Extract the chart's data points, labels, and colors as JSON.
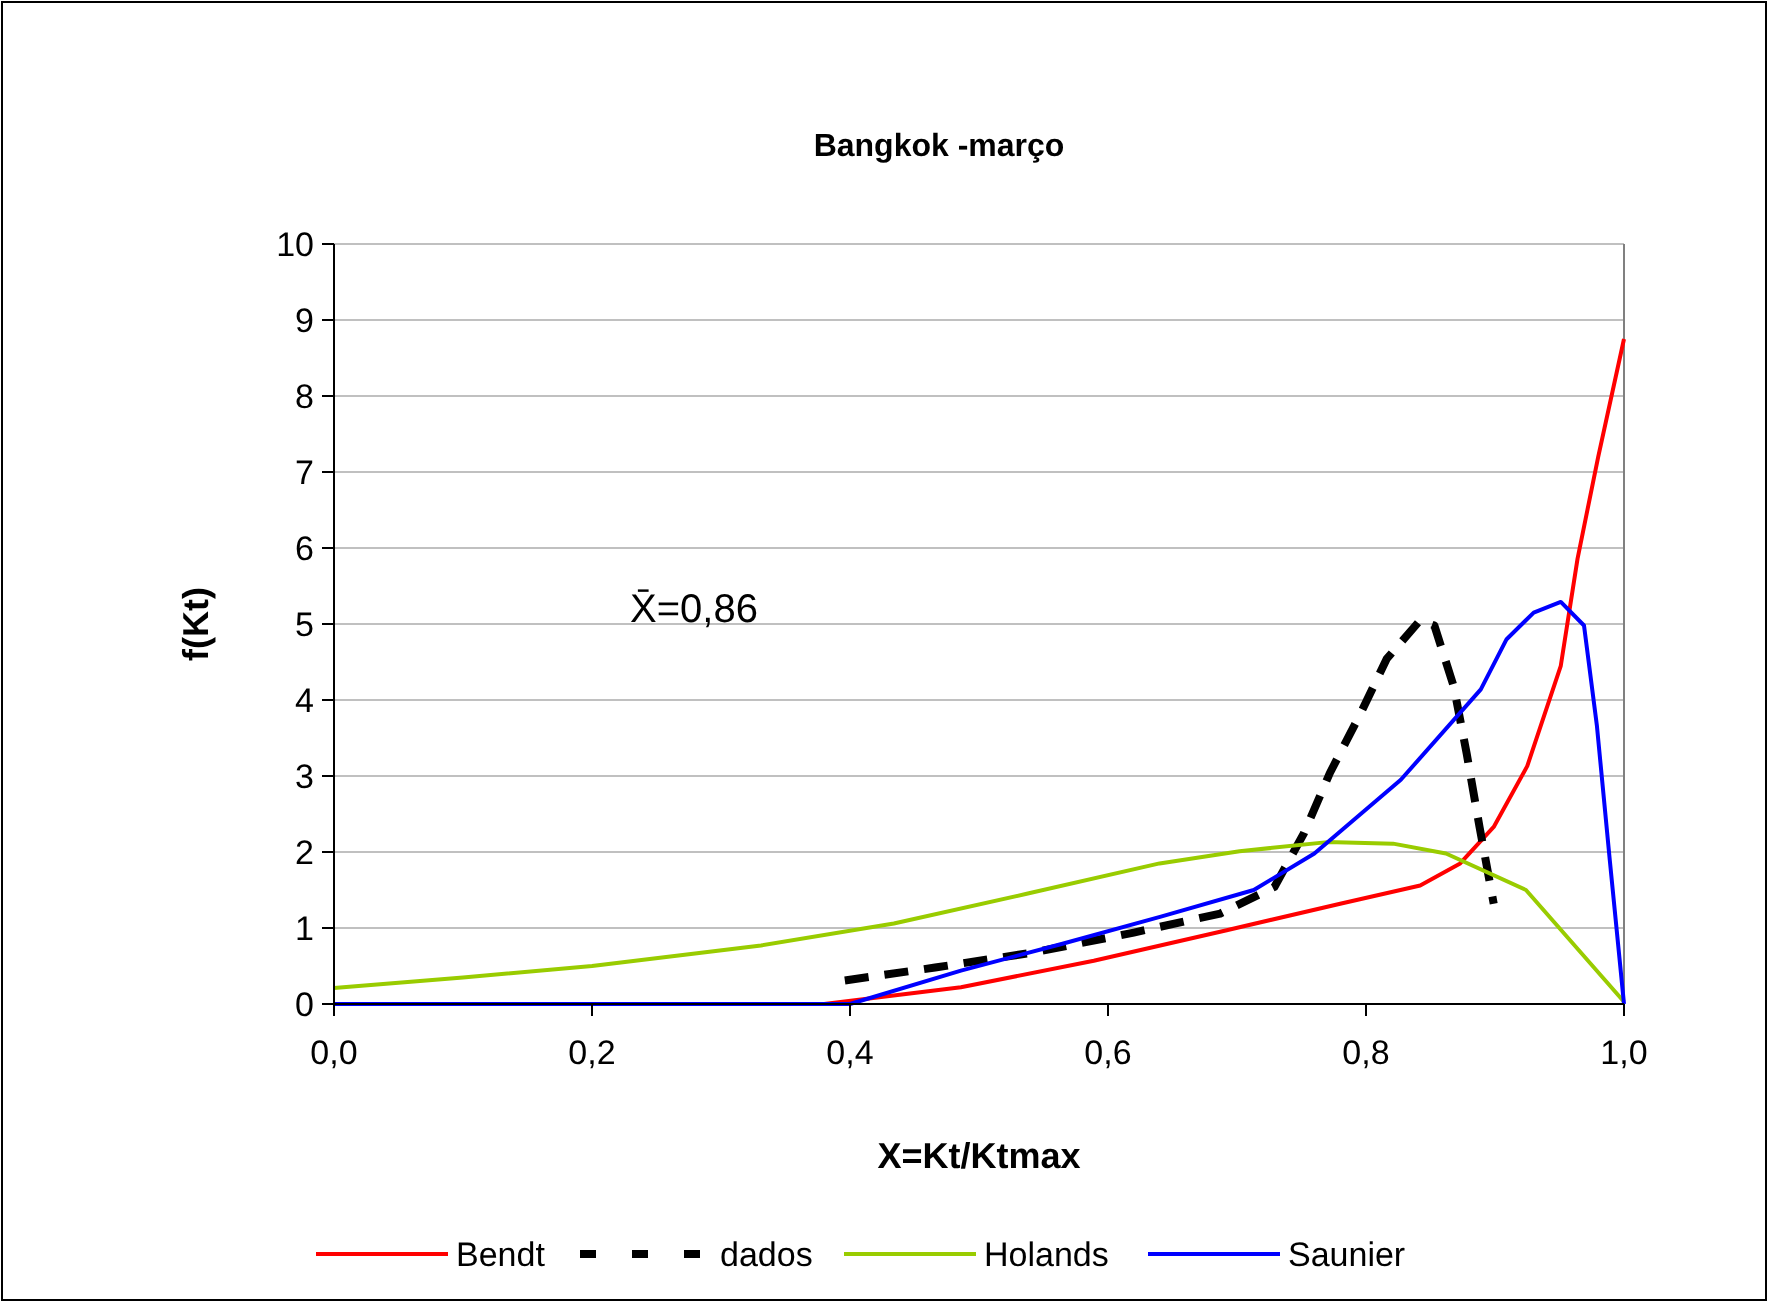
{
  "chart_data": {
    "type": "line",
    "title": "Bangkok -março",
    "xlabel": "X=Kt/Ktmax",
    "ylabel": "f(Kt)",
    "annotations": [
      "X̄=0,86"
    ],
    "xlim": [
      0,
      1
    ],
    "xticks": [
      {
        "value": 0,
        "label": "0,0"
      },
      {
        "value": 0.2,
        "label": "0,2"
      },
      {
        "value": 0.4,
        "label": "0,4"
      },
      {
        "value": 0.6,
        "label": "0,6"
      },
      {
        "value": 0.8,
        "label": "0,8"
      },
      {
        "value": 1,
        "label": "1,0"
      }
    ],
    "ylim": [
      0,
      10
    ],
    "yticks": [
      0,
      1,
      2,
      3,
      4,
      5,
      6,
      7,
      8,
      9,
      10
    ],
    "grid": "y",
    "legend": "bottom",
    "marker": "none",
    "series": [
      {
        "name": "Bendt",
        "color": "#ff0000",
        "x": [
          0.38,
          0.486,
          0.589,
          0.692,
          0.78,
          0.842,
          0.873,
          0.899,
          0.925,
          0.951,
          0.964,
          0.98,
          1.0
        ],
        "values": [
          0,
          0.22,
          0.57,
          0.97,
          1.32,
          1.56,
          1.85,
          2.33,
          3.13,
          4.45,
          5.86,
          7.2,
          8.75
        ]
      },
      {
        "name": "dados",
        "color": "#000000",
        "line_style": "dashed",
        "x": [
          0.396,
          0.466,
          0.543,
          0.62,
          0.687,
          0.729,
          0.752,
          0.772,
          0.796,
          0.816,
          0.842,
          0.853,
          0.868,
          0.878,
          0.888,
          0.899
        ],
        "values": [
          0.31,
          0.48,
          0.68,
          0.94,
          1.19,
          1.54,
          2.25,
          3.04,
          3.83,
          4.54,
          5.05,
          4.98,
          4.18,
          3.3,
          2.33,
          1.32
        ]
      },
      {
        "name": "Holands",
        "color": "#99cc00",
        "x": [
          0,
          0.1,
          0.2,
          0.331,
          0.434,
          0.537,
          0.64,
          0.702,
          0.77,
          0.821,
          0.862,
          0.924,
          1.0
        ],
        "values": [
          0.21,
          0.35,
          0.5,
          0.77,
          1.06,
          1.45,
          1.85,
          2.01,
          2.13,
          2.11,
          1.98,
          1.5,
          0.03
        ]
      },
      {
        "name": "Saunier",
        "color": "#0000ff",
        "x": [
          0,
          0.2,
          0.4,
          0.486,
          0.564,
          0.641,
          0.713,
          0.76,
          0.827,
          0.889,
          0.909,
          0.93,
          0.951,
          0.969,
          0.979,
          0.989,
          1.0
        ],
        "values": [
          0,
          0,
          0,
          0.44,
          0.79,
          1.15,
          1.5,
          1.98,
          2.95,
          4.14,
          4.8,
          5.15,
          5.29,
          4.98,
          3.66,
          1.89,
          0
        ]
      }
    ]
  }
}
